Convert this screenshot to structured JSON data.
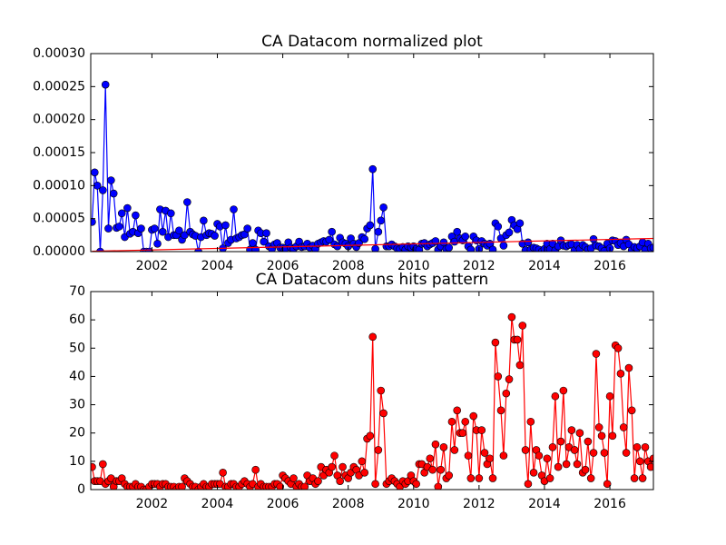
{
  "chart_data": [
    {
      "type": "line",
      "title": "CA Datacom normalized plot",
      "x": [
        2000.17,
        2000.25,
        2000.33,
        2000.42,
        2000.5,
        2000.58,
        2000.67,
        2000.75,
        2000.83,
        2000.92,
        2001.0,
        2001.08,
        2001.17,
        2001.25,
        2001.33,
        2001.42,
        2001.5,
        2001.58,
        2001.67,
        2001.75,
        2001.83,
        2001.92,
        2002.0,
        2002.08,
        2002.17,
        2002.25,
        2002.33,
        2002.42,
        2002.5,
        2002.58,
        2002.67,
        2002.75,
        2002.83,
        2002.92,
        2003.0,
        2003.08,
        2003.17,
        2003.25,
        2003.33,
        2003.42,
        2003.5,
        2003.58,
        2003.67,
        2003.75,
        2003.83,
        2003.92,
        2004.0,
        2004.08,
        2004.17,
        2004.25,
        2004.33,
        2004.42,
        2004.5,
        2004.58,
        2004.67,
        2004.75,
        2004.83,
        2004.92,
        2005.0,
        2005.08,
        2005.17,
        2005.25,
        2005.33,
        2005.42,
        2005.5,
        2005.58,
        2005.67,
        2005.75,
        2005.83,
        2005.92,
        2006.0,
        2006.08,
        2006.17,
        2006.25,
        2006.33,
        2006.42,
        2006.5,
        2006.58,
        2006.67,
        2006.75,
        2006.83,
        2006.92,
        2007.0,
        2007.08,
        2007.17,
        2007.25,
        2007.33,
        2007.42,
        2007.5,
        2007.58,
        2007.67,
        2007.75,
        2007.83,
        2007.92,
        2008.0,
        2008.08,
        2008.17,
        2008.25,
        2008.33,
        2008.42,
        2008.5,
        2008.58,
        2008.67,
        2008.75,
        2008.83,
        2008.92,
        2009.0,
        2009.08,
        2009.17,
        2009.25,
        2009.33,
        2009.42,
        2009.5,
        2009.58,
        2009.67,
        2009.75,
        2009.83,
        2009.92,
        2010.0,
        2010.08,
        2010.17,
        2010.25,
        2010.33,
        2010.42,
        2010.5,
        2010.58,
        2010.67,
        2010.75,
        2010.83,
        2010.92,
        2011.0,
        2011.08,
        2011.17,
        2011.25,
        2011.33,
        2011.42,
        2011.5,
        2011.58,
        2011.67,
        2011.75,
        2011.83,
        2011.92,
        2012.0,
        2012.08,
        2012.17,
        2012.25,
        2012.33,
        2012.42,
        2012.5,
        2012.58,
        2012.67,
        2012.75,
        2012.83,
        2012.92,
        2013.0,
        2013.08,
        2013.17,
        2013.25,
        2013.33,
        2013.42,
        2013.5,
        2013.58,
        2013.67,
        2013.75,
        2013.83,
        2013.92,
        2014.0,
        2014.08,
        2014.17,
        2014.25,
        2014.33,
        2014.42,
        2014.5,
        2014.58,
        2014.67,
        2014.75,
        2014.83,
        2014.92,
        2015.0,
        2015.08,
        2015.17,
        2015.25,
        2015.33,
        2015.42,
        2015.5,
        2015.58,
        2015.67,
        2015.75,
        2015.83,
        2015.92,
        2016.0,
        2016.08,
        2016.17,
        2016.25,
        2016.33,
        2016.42,
        2016.5,
        2016.58,
        2016.67,
        2016.75,
        2016.83,
        2016.92,
        2017.0,
        2017.08,
        2017.17,
        2017.25,
        2017.33
      ],
      "series": [
        {
          "color": "#0000ff",
          "marker": true,
          "values": [
            4.5e-05,
            0.00012,
            0.0001,
            0.0,
            9.3e-05,
            0.000253,
            3.5e-05,
            0.000108,
            8.8e-05,
            3.6e-05,
            3.8e-05,
            5.8e-05,
            2.2e-05,
            6.6e-05,
            2.7e-05,
            3e-05,
            5.5e-05,
            2.8e-05,
            3.5e-05,
            0.0,
            0.0,
            0.0,
            3.3e-05,
            3.5e-05,
            1.2e-05,
            6.4e-05,
            3e-05,
            6.2e-05,
            2.2e-05,
            5.8e-05,
            2.5e-05,
            2.5e-05,
            3.2e-05,
            1.8e-05,
            2.5e-05,
            7.5e-05,
            3e-05,
            2.6e-05,
            2.4e-05,
            0.0,
            2.2e-05,
            4.7e-05,
            2.5e-05,
            2.8e-05,
            2.7e-05,
            2.4e-05,
            4.2e-05,
            3.8e-05,
            5e-06,
            4e-05,
            1.3e-05,
            1.8e-05,
            6.4e-05,
            2e-05,
            2.2e-05,
            2.5e-05,
            2.6e-05,
            3.5e-05,
            3e-06,
            1.3e-05,
            3e-06,
            3.2e-05,
            2.8e-05,
            1.5e-05,
            2.8e-05,
            8e-06,
            4e-06,
            1.1e-05,
            1.3e-05,
            6e-06,
            6e-06,
            5e-06,
            1.4e-05,
            6e-06,
            4e-06,
            8e-06,
            1.5e-05,
            7e-06,
            8e-06,
            1.2e-05,
            6e-06,
            9e-06,
            4e-06,
            1.2e-05,
            1.4e-05,
            1.6e-05,
            1.5e-05,
            1.8e-05,
            3e-05,
            1.1e-05,
            8e-06,
            2.1e-05,
            1.4e-05,
            1.2e-05,
            8e-06,
            2e-05,
            1.2e-05,
            7e-06,
            1.3e-05,
            2.2e-05,
            1.9e-05,
            3.5e-05,
            4e-05,
            0.000125,
            4e-06,
            3e-05,
            4.7e-05,
            6.7e-05,
            8e-06,
            8e-06,
            1.1e-05,
            8e-06,
            5e-06,
            4e-06,
            7e-06,
            3e-06,
            8e-06,
            6e-06,
            8e-06,
            4e-06,
            3e-06,
            1.2e-05,
            1.3e-05,
            8e-06,
            1.1e-05,
            1.3e-05,
            1.6e-05,
            3e-06,
            8e-06,
            1.4e-05,
            4e-06,
            6e-06,
            2.3e-05,
            1.5e-05,
            3e-05,
            2e-05,
            1.7e-05,
            2.3e-05,
            8e-06,
            3e-06,
            2.3e-05,
            1.7e-05,
            4e-06,
            1.6e-05,
            1.2e-05,
            9e-06,
            1.2e-05,
            3e-06,
            4.3e-05,
            3.8e-05,
            2e-05,
            9e-06,
            2.5e-05,
            2.9e-05,
            4.8e-05,
            4e-05,
            3.4e-05,
            4.3e-05,
            1.2e-05,
            2e-06,
            1.4e-05,
            3e-06,
            6e-06,
            5e-06,
            3e-06,
            0.0,
            4e-06,
            1.2e-05,
            4e-06,
            1.2e-05,
            2e-06,
            8e-06,
            1.7e-05,
            9e-06,
            8e-06,
            1e-05,
            1.1e-05,
            2e-06,
            1e-05,
            4e-06,
            1e-05,
            7e-06,
            3e-06,
            5e-06,
            1.9e-05,
            9e-06,
            8e-06,
            5e-06,
            1e-06,
            1.2e-05,
            5e-06,
            1.7e-05,
            1.6e-05,
            1e-05,
            1.3e-05,
            8e-06,
            1.8e-05,
            1.1e-05,
            2e-06,
            7e-06,
            5e-06,
            8e-06,
            1.4e-05,
            3e-06,
            1.2e-05,
            5e-06,
            6e-06
          ]
        },
        {
          "color": "#ff0000",
          "marker": false,
          "x": [
            2000.17,
            2017.33
          ],
          "values": [
            5e-07,
            2e-05
          ]
        }
      ],
      "xlim": [
        2000.13,
        2017.33
      ],
      "xticks": [
        2002,
        2004,
        2006,
        2008,
        2010,
        2012,
        2014,
        2016
      ],
      "ylim": [
        0,
        0.0003
      ],
      "yticks": [
        {
          "value": 0,
          "label": "0.00000"
        },
        {
          "value": 5e-05,
          "label": "0.00005"
        },
        {
          "value": 0.0001,
          "label": "0.00010"
        },
        {
          "value": 0.00015,
          "label": "0.00015"
        },
        {
          "value": 0.0002,
          "label": "0.00020"
        },
        {
          "value": 0.00025,
          "label": "0.00025"
        },
        {
          "value": 0.0003,
          "label": "0.00030"
        }
      ]
    },
    {
      "type": "line",
      "title": "CA Datacom duns hits pattern",
      "x": [
        2000.17,
        2000.25,
        2000.33,
        2000.42,
        2000.5,
        2000.58,
        2000.67,
        2000.75,
        2000.83,
        2000.92,
        2001.0,
        2001.08,
        2001.17,
        2001.25,
        2001.33,
        2001.42,
        2001.5,
        2001.58,
        2001.67,
        2001.75,
        2001.83,
        2001.92,
        2002.0,
        2002.08,
        2002.17,
        2002.25,
        2002.33,
        2002.42,
        2002.5,
        2002.58,
        2002.67,
        2002.75,
        2002.83,
        2002.92,
        2003.0,
        2003.08,
        2003.17,
        2003.25,
        2003.33,
        2003.42,
        2003.5,
        2003.58,
        2003.67,
        2003.75,
        2003.83,
        2003.92,
        2004.0,
        2004.08,
        2004.17,
        2004.25,
        2004.33,
        2004.42,
        2004.5,
        2004.58,
        2004.67,
        2004.75,
        2004.83,
        2004.92,
        2005.0,
        2005.08,
        2005.17,
        2005.25,
        2005.33,
        2005.42,
        2005.5,
        2005.58,
        2005.67,
        2005.75,
        2005.83,
        2005.92,
        2006.0,
        2006.08,
        2006.17,
        2006.25,
        2006.33,
        2006.42,
        2006.5,
        2006.58,
        2006.67,
        2006.75,
        2006.83,
        2006.92,
        2007.0,
        2007.08,
        2007.17,
        2007.25,
        2007.33,
        2007.42,
        2007.5,
        2007.58,
        2007.67,
        2007.75,
        2007.83,
        2007.92,
        2008.0,
        2008.08,
        2008.17,
        2008.25,
        2008.33,
        2008.42,
        2008.5,
        2008.58,
        2008.67,
        2008.75,
        2008.83,
        2008.92,
        2009.0,
        2009.08,
        2009.17,
        2009.25,
        2009.33,
        2009.42,
        2009.5,
        2009.58,
        2009.67,
        2009.75,
        2009.83,
        2009.92,
        2010.0,
        2010.08,
        2010.17,
        2010.25,
        2010.33,
        2010.42,
        2010.5,
        2010.58,
        2010.67,
        2010.75,
        2010.83,
        2010.92,
        2011.0,
        2011.08,
        2011.17,
        2011.25,
        2011.33,
        2011.42,
        2011.5,
        2011.58,
        2011.67,
        2011.75,
        2011.83,
        2011.92,
        2012.0,
        2012.08,
        2012.17,
        2012.25,
        2012.33,
        2012.42,
        2012.5,
        2012.58,
        2012.67,
        2012.75,
        2012.83,
        2012.92,
        2013.0,
        2013.08,
        2013.17,
        2013.25,
        2013.33,
        2013.42,
        2013.5,
        2013.58,
        2013.67,
        2013.75,
        2013.83,
        2013.92,
        2014.0,
        2014.08,
        2014.17,
        2014.25,
        2014.33,
        2014.42,
        2014.5,
        2014.58,
        2014.67,
        2014.75,
        2014.83,
        2014.92,
        2015.0,
        2015.08,
        2015.17,
        2015.25,
        2015.33,
        2015.42,
        2015.5,
        2015.58,
        2015.67,
        2015.75,
        2015.83,
        2015.92,
        2016.0,
        2016.08,
        2016.17,
        2016.25,
        2016.33,
        2016.42,
        2016.5,
        2016.58,
        2016.67,
        2016.75,
        2016.83,
        2016.92,
        2017.0,
        2017.08,
        2017.17,
        2017.25,
        2017.33
      ],
      "series": [
        {
          "color": "#ff0000",
          "marker": true,
          "values": [
            8,
            3,
            3,
            3,
            9,
            2,
            3,
            4,
            1,
            3,
            3,
            4,
            2,
            1,
            1,
            1,
            2,
            1,
            1,
            0,
            0,
            1,
            2,
            2,
            2,
            1,
            2,
            2,
            1,
            1,
            1,
            0,
            1,
            1,
            4,
            3,
            2,
            1,
            1,
            0,
            1,
            2,
            1,
            1,
            2,
            2,
            2,
            2,
            6,
            1,
            1,
            2,
            2,
            1,
            1,
            2,
            3,
            2,
            1,
            2,
            7,
            1,
            2,
            1,
            1,
            1,
            1,
            2,
            2,
            1,
            5,
            4,
            3,
            2,
            4,
            1,
            2,
            1,
            1,
            5,
            3,
            4,
            2,
            3,
            8,
            5,
            7,
            6,
            8,
            12,
            5,
            3,
            8,
            5,
            4,
            6,
            8,
            7,
            5,
            10,
            6,
            18,
            19,
            54,
            2,
            14,
            35,
            27,
            2,
            3,
            4,
            3,
            2,
            1,
            3,
            2,
            3,
            5,
            3,
            2,
            9,
            9,
            6,
            8,
            11,
            7,
            16,
            1,
            7,
            15,
            4,
            5,
            24,
            14,
            28,
            20,
            20,
            24,
            12,
            4,
            26,
            21,
            4,
            21,
            13,
            9,
            11,
            4,
            52,
            40,
            28,
            12,
            34,
            39,
            61,
            53,
            53,
            44,
            58,
            14,
            2,
            24,
            6,
            14,
            12,
            5,
            3,
            11,
            4,
            15,
            33,
            8,
            17,
            35,
            9,
            15,
            21,
            14,
            9,
            20,
            6,
            7,
            17,
            4,
            13,
            48,
            22,
            19,
            13,
            2,
            33,
            19,
            51,
            50,
            41,
            22,
            13,
            43,
            28,
            4,
            15,
            10,
            4,
            15,
            10,
            8,
            11
          ]
        }
      ],
      "xlim": [
        2000.13,
        2017.33
      ],
      "xticks": [
        2002,
        2004,
        2006,
        2008,
        2010,
        2012,
        2014,
        2016
      ],
      "ylim": [
        0,
        70
      ],
      "yticks": [
        0,
        10,
        20,
        30,
        40,
        50,
        60,
        70
      ]
    }
  ]
}
